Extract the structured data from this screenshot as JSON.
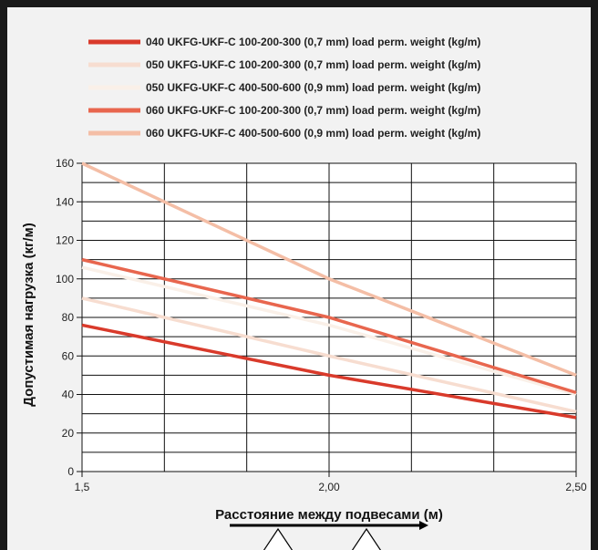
{
  "chart_data": {
    "type": "line",
    "title": "",
    "xlabel": "Расстояние между подвесами (м)",
    "ylabel": "Допустимая нагрузка (кг/м)",
    "xlim": [
      1.5,
      2.5
    ],
    "ylim": [
      0,
      160
    ],
    "x_ticks": [
      1.5,
      2.0,
      2.5
    ],
    "x_tick_labels": [
      "1,5",
      "2,00",
      "2,50"
    ],
    "y_ticks": [
      0,
      20,
      40,
      60,
      80,
      100,
      120,
      140,
      160
    ],
    "grid": true,
    "legend_position": "top",
    "x": [
      1.5,
      2.0,
      2.5
    ],
    "series": [
      {
        "name": "040 UKFG-UKF-C 100-200-300 (0,7 mm) load perm. weight (kg/m)",
        "color": "#d93a2b",
        "values": [
          76,
          50,
          28
        ]
      },
      {
        "name": "050 UKFG-UKF-C 100-200-300 (0,7 mm) load perm. weight (kg/m)",
        "color": "#f7ddd0",
        "values": [
          90,
          60,
          31
        ]
      },
      {
        "name": "050 UKFG-UKF-C 400-500-600 (0,9 mm) load perm. weight (kg/m)",
        "color": "#faf0e8",
        "values": [
          106,
          76,
          40
        ]
      },
      {
        "name": "060 UKFG-UKF-C 100-200-300 (0,7 mm) load perm. weight (kg/m)",
        "color": "#e8664e",
        "values": [
          110,
          80,
          41
        ]
      },
      {
        "name": "060 UKFG-UKF-C 400-500-600 (0,9 mm) load perm. weight (kg/m)",
        "color": "#f4bea6",
        "values": [
          160,
          100,
          50
        ]
      }
    ]
  }
}
